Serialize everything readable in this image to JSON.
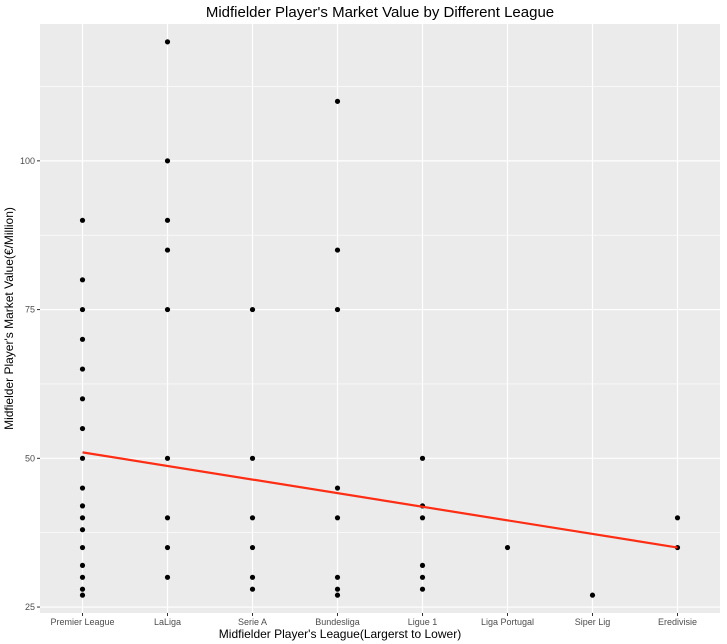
{
  "chart_data": {
    "type": "scatter",
    "title": "Midfielder Player's Market Value by Different League",
    "xlabel": "Midfielder Player's League(Largerst to Lower)",
    "ylabel": "Midfielder Player's Market Value(€/Million)",
    "categories": [
      "Premier League",
      "LaLiga",
      "Serie A",
      "Bundesliga",
      "Ligue 1",
      "Liga Portugal",
      "Siper Lig",
      "Eredivisie"
    ],
    "ylim": [
      24,
      123
    ],
    "yticks": [
      25,
      50,
      75,
      100
    ],
    "grid": true,
    "colors": {
      "panel": "#EBEBEB",
      "grid": "#FFFFFF",
      "points": "#000000",
      "trend": "#FF2D14"
    },
    "series": [
      {
        "values_by_category": [
          [
            90,
            80,
            75,
            70,
            65,
            60,
            55,
            50,
            45,
            42,
            40,
            38,
            35,
            32,
            30,
            28,
            27
          ],
          [
            120,
            100,
            90,
            85,
            75,
            50,
            40,
            35,
            30
          ],
          [
            75,
            50,
            40,
            35,
            30,
            28
          ],
          [
            110,
            85,
            75,
            45,
            40,
            30,
            28,
            27
          ],
          [
            50,
            42,
            40,
            32,
            30,
            28
          ],
          [
            35
          ],
          [
            27
          ],
          [
            40,
            35
          ]
        ]
      }
    ],
    "trendline": {
      "from": {
        "category": "Premier League",
        "y": 51
      },
      "to": {
        "category": "Eredivisie",
        "y": 35
      }
    }
  }
}
